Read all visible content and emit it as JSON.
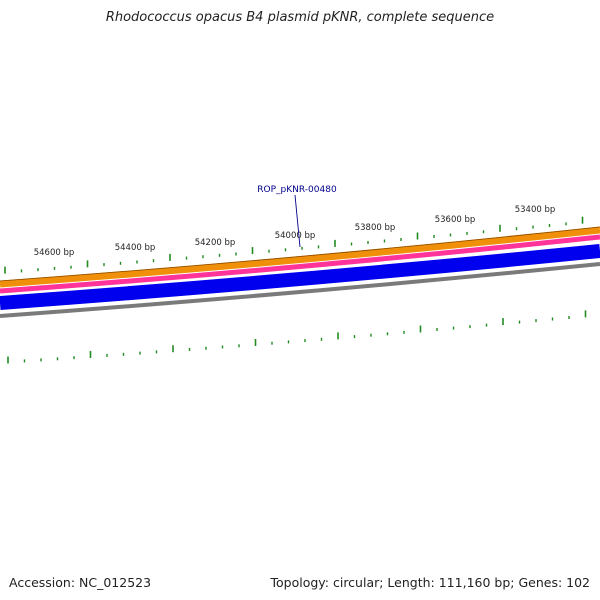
{
  "title": "Rhodococcus opacus B4 plasmid pKNR, complete sequence",
  "footer": {
    "accession": "Accession: NC_012523",
    "summary": "Topology: circular; Length: 111,160 bp; Genes: 102"
  },
  "ruler": {
    "labels": [
      "54600 bp",
      "54400 bp",
      "54200 bp",
      "54000 bp",
      "53800 bp",
      "53600 bp",
      "53400 bp"
    ],
    "color": "#228b22"
  },
  "feature_label": {
    "text": "ROP_pKNR-00480",
    "color": "#00008b"
  },
  "rings": [
    {
      "name": "ring-orange",
      "color": "#f0900a"
    },
    {
      "name": "ring-magenta",
      "color": "#ff3399"
    },
    {
      "name": "ring-blue",
      "color": "#0000ee"
    },
    {
      "name": "ring-gray",
      "color": "#7a7a7a"
    }
  ]
}
